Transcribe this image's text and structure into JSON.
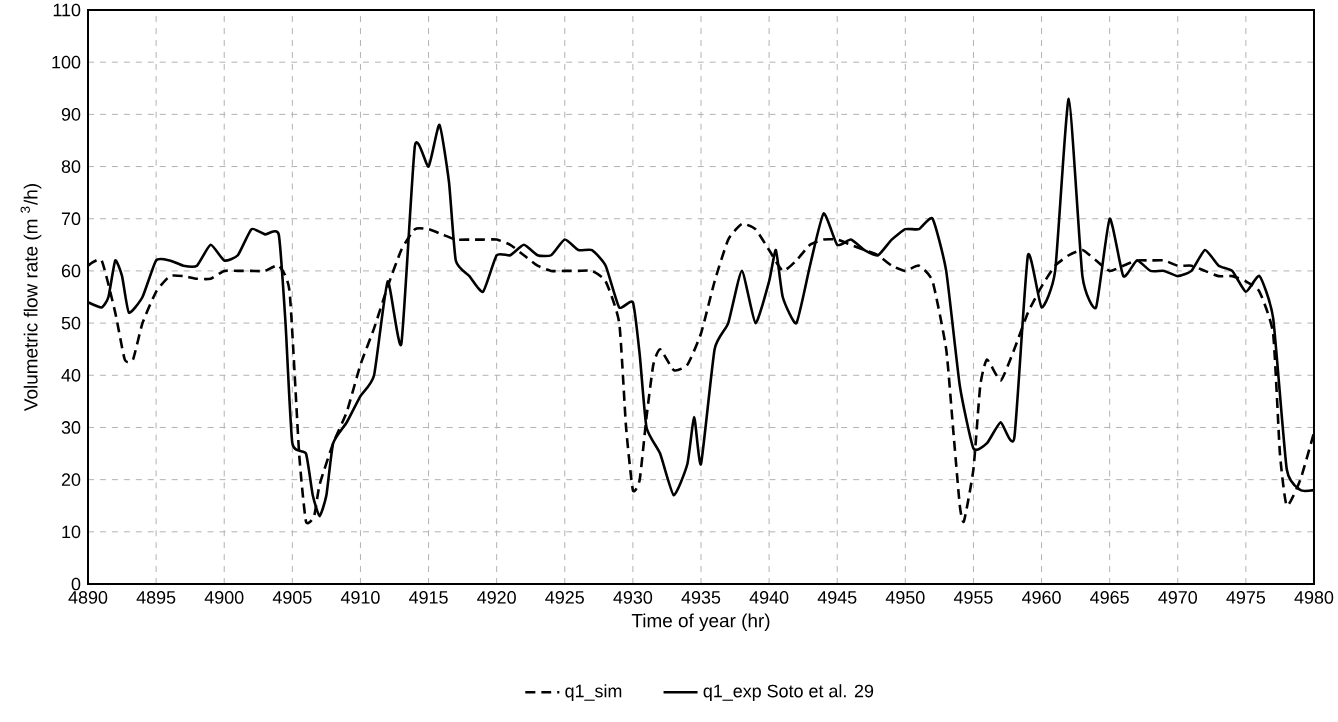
{
  "chart_data": {
    "type": "line",
    "xlabel": "Time of year (hr)",
    "ylabel": "Volumetric flow rate  (m $^{3}$/h)",
    "xlim": [
      4890,
      4980
    ],
    "ylim": [
      0,
      110
    ],
    "xticks": [
      4890,
      4895,
      4900,
      4905,
      4910,
      4915,
      4920,
      4925,
      4930,
      4935,
      4940,
      4945,
      4950,
      4955,
      4960,
      4965,
      4970,
      4975,
      4980
    ],
    "yticks": [
      0,
      10,
      20,
      30,
      40,
      50,
      60,
      70,
      80,
      90,
      100,
      110
    ],
    "grid": true,
    "legend": "bottom",
    "marker": "none",
    "series": [
      {
        "name": "q1_sim",
        "color": "#000000",
        "line_style": "dashed",
        "x": [
          4890,
          4891,
          4892,
          4892.7,
          4893.3,
          4894,
          4895,
          4896,
          4897,
          4898,
          4899,
          4900,
          4901,
          4902,
          4903,
          4904,
          4904.8,
          4905.5,
          4906,
          4906.6,
          4907,
          4908,
          4909,
          4910,
          4911,
          4912,
          4913,
          4914,
          4915,
          4916,
          4917,
          4918,
          4919,
          4920,
          4921,
          4922,
          4923,
          4924,
          4925,
          4926,
          4927,
          4928,
          4929,
          4929.5,
          4930,
          4930.5,
          4931,
          4931.5,
          4932,
          4933,
          4934,
          4935,
          4936,
          4937,
          4938,
          4939,
          4940,
          4941,
          4942,
          4943,
          4944,
          4945,
          4946,
          4947,
          4948,
          4949,
          4950,
          4951,
          4952,
          4953,
          4953.5,
          4954,
          4954.3,
          4955,
          4955.5,
          4956,
          4957,
          4958,
          4959,
          4960,
          4961,
          4962,
          4963,
          4964,
          4965,
          4966,
          4967,
          4968,
          4969,
          4970,
          4971,
          4972,
          4973,
          4974,
          4975,
          4976,
          4977,
          4977.5,
          4978,
          4979,
          4980
        ],
        "values": [
          61,
          62,
          52,
          43,
          43,
          50,
          56,
          59,
          59,
          58.5,
          58.5,
          60,
          60,
          60,
          60,
          61,
          56,
          25,
          12,
          13,
          19,
          27,
          33,
          42,
          49,
          57,
          64,
          68,
          68,
          67,
          66,
          66,
          66,
          66,
          65,
          63,
          61,
          60,
          60,
          60,
          60,
          58,
          50,
          30,
          18,
          20,
          32,
          42,
          45,
          41,
          42,
          48,
          58,
          66,
          69,
          68,
          64,
          60,
          62,
          65,
          66,
          66,
          65,
          64,
          63,
          61,
          60,
          61,
          58,
          45,
          30,
          15,
          12,
          22,
          38,
          43,
          39,
          45,
          52,
          57,
          61,
          63,
          64,
          62,
          60,
          61,
          62,
          62,
          62,
          61,
          61,
          60,
          59,
          59,
          58,
          56,
          48,
          25,
          15,
          20,
          29
        ]
      },
      {
        "name": "q1_exp Soto et al. 29",
        "color": "#000000",
        "line_style": "solid",
        "x": [
          4890,
          4891,
          4891.5,
          4892,
          4892.5,
          4893,
          4894,
          4895,
          4896,
          4897,
          4898,
          4899,
          4900,
          4901,
          4902,
          4903,
          4904,
          4904.5,
          4905,
          4906,
          4906.5,
          4907,
          4907.5,
          4908,
          4909,
          4910,
          4911,
          4912,
          4913,
          4914,
          4915,
          4915.8,
          4916.5,
          4917,
          4918,
          4919,
          4920,
          4921,
          4922,
          4923,
          4924,
          4925,
          4926,
          4927,
          4928,
          4929,
          4930,
          4930.5,
          4931,
          4932,
          4933,
          4934,
          4934.5,
          4935,
          4936,
          4937,
          4938,
          4939,
          4940,
          4940.5,
          4941,
          4942,
          4943,
          4944,
          4945,
          4946,
          4947,
          4948,
          4949,
          4950,
          4951,
          4952,
          4953,
          4954,
          4955,
          4956,
          4957,
          4958,
          4959,
          4960,
          4961,
          4962,
          4963,
          4964,
          4965,
          4966,
          4967,
          4968,
          4969,
          4970,
          4971,
          4972,
          4973,
          4974,
          4975,
          4976,
          4977,
          4978,
          4979,
          4980
        ],
        "values": [
          54,
          53,
          55,
          62,
          59,
          52,
          55,
          62,
          62,
          61,
          61,
          65,
          62,
          63,
          68,
          67,
          67,
          50,
          27,
          25,
          17,
          13,
          17,
          27,
          31,
          36,
          40,
          58,
          46,
          84,
          80,
          88,
          77,
          62,
          59,
          56,
          63,
          63,
          65,
          63,
          63,
          66,
          64,
          64,
          61,
          53,
          54,
          44,
          30,
          25,
          17,
          23,
          32,
          23,
          45,
          50,
          60,
          50,
          58,
          64,
          55,
          50,
          61,
          71,
          65,
          66,
          64,
          63,
          66,
          68,
          68,
          70,
          60,
          38,
          26,
          27,
          31,
          28,
          63,
          53,
          60,
          93,
          59,
          53,
          70,
          59,
          62,
          60,
          60,
          59,
          60,
          64,
          61,
          60,
          56,
          59,
          51,
          22,
          18,
          18
        ]
      }
    ]
  }
}
